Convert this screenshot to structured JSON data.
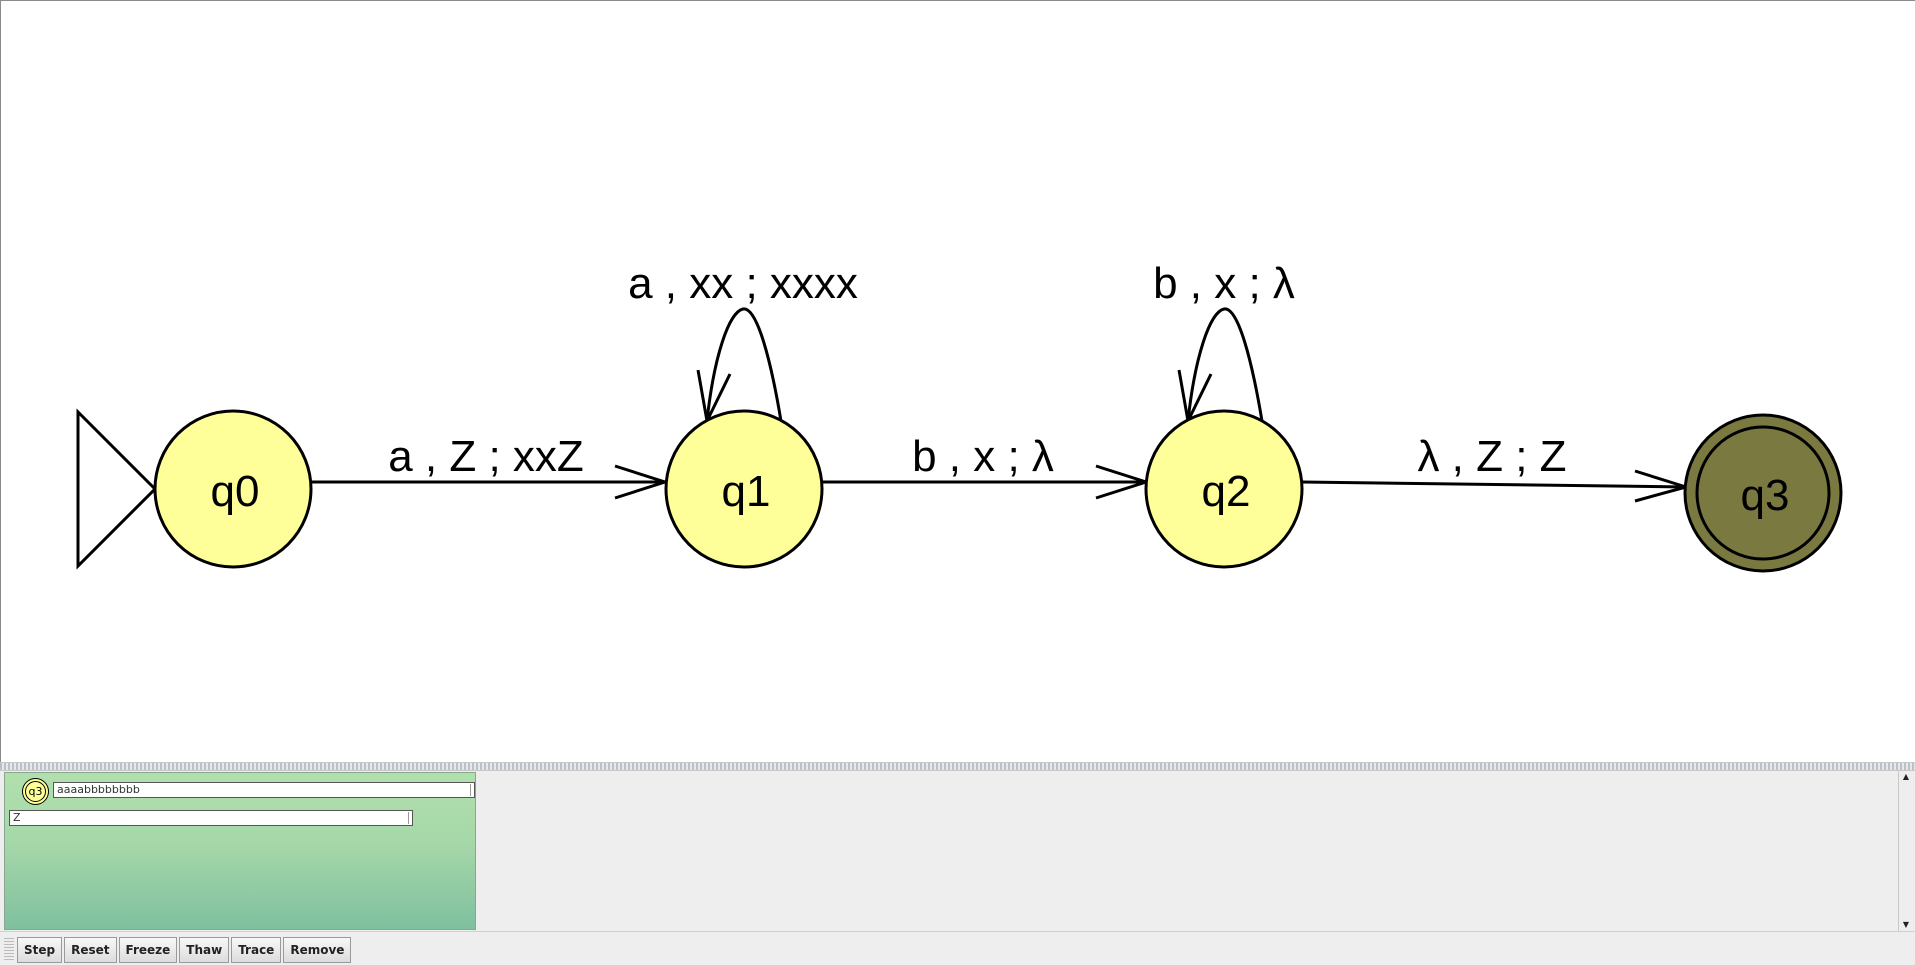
{
  "automaton": {
    "states": [
      {
        "id": "q0",
        "label": "q0",
        "initial": true,
        "final": false
      },
      {
        "id": "q1",
        "label": "q1",
        "initial": false,
        "final": false
      },
      {
        "id": "q2",
        "label": "q2",
        "initial": false,
        "final": false
      },
      {
        "id": "q3",
        "label": "q3",
        "initial": false,
        "final": true
      }
    ],
    "transitions": [
      {
        "from": "q0",
        "to": "q1",
        "label": "a , Z ; xxZ"
      },
      {
        "from": "q1",
        "to": "q1",
        "label": "a , xx ; xxxx"
      },
      {
        "from": "q1",
        "to": "q2",
        "label": "b , x ; λ"
      },
      {
        "from": "q2",
        "to": "q2",
        "label": "b , x ; λ"
      },
      {
        "from": "q2",
        "to": "q3",
        "label": "λ , Z ; Z"
      }
    ],
    "colors": {
      "state_fill": "#ffff99",
      "final_highlight_fill": "#7a7a40",
      "stroke": "#000000"
    }
  },
  "simulation": {
    "current_state": "q3",
    "input_remaining": "aaaabbbbbbbb",
    "stack": "Z",
    "config_colors": {
      "top": "#b1e0ad",
      "bottom": "#7fc09f"
    }
  },
  "toolbar": {
    "step": "Step",
    "reset": "Reset",
    "freeze": "Freeze",
    "thaw": "Thaw",
    "trace": "Trace",
    "remove": "Remove"
  },
  "icons": {
    "scroll_up": "▲",
    "scroll_down": "▼"
  }
}
